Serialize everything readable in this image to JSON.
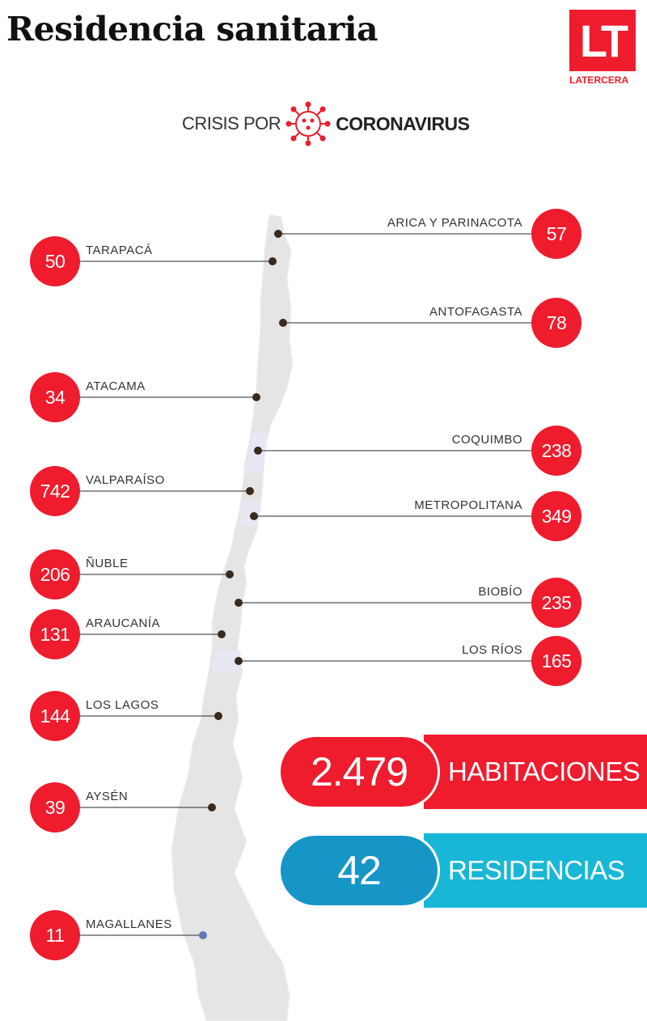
{
  "title": "Residencia sanitaria",
  "logo": {
    "mark": "LT",
    "text": "LATERCERA"
  },
  "crisis": {
    "lead": "CRISIS POR",
    "main": "CORONAVIRUS",
    "icon": "virus-icon"
  },
  "colors": {
    "red": "#ee1c2d",
    "blue": "#1596c7",
    "cyan": "#19b7d6",
    "map": "#e4e4e4"
  },
  "regions": [
    {
      "name": "ARICA Y PARINACOTA",
      "value": "57",
      "side": "right"
    },
    {
      "name": "TARAPACÁ",
      "value": "50",
      "side": "left"
    },
    {
      "name": "ANTOFAGASTA",
      "value": "78",
      "side": "right"
    },
    {
      "name": "ATACAMA",
      "value": "34",
      "side": "left"
    },
    {
      "name": "COQUIMBO",
      "value": "238",
      "side": "right"
    },
    {
      "name": "VALPARAÍSO",
      "value": "742",
      "side": "left"
    },
    {
      "name": "METROPOLITANA",
      "value": "349",
      "side": "right"
    },
    {
      "name": "ÑUBLE",
      "value": "206",
      "side": "left"
    },
    {
      "name": "BIOBÍO",
      "value": "235",
      "side": "right"
    },
    {
      "name": "ARAUCANÍA",
      "value": "131",
      "side": "left"
    },
    {
      "name": "LOS RÍOS",
      "value": "165",
      "side": "right"
    },
    {
      "name": "LOS LAGOS",
      "value": "144",
      "side": "left"
    },
    {
      "name": "AYSÉN",
      "value": "39",
      "side": "left"
    },
    {
      "name": "MAGALLANES",
      "value": "11",
      "side": "left"
    }
  ],
  "stats": {
    "rooms": {
      "value": "2.479",
      "label": "HABITACIONES"
    },
    "residences": {
      "value": "42",
      "label": "RESIDENCIAS"
    }
  }
}
